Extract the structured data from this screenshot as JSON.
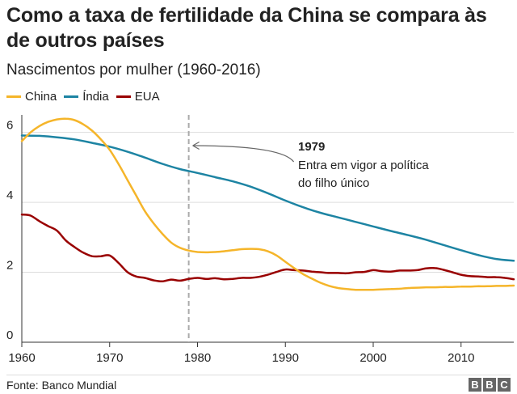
{
  "header": {
    "title": "Como a taxa de fertilidade da China se compara às de outros países",
    "subtitle": "Nascimentos por mulher (1960-2016)"
  },
  "footer": {
    "source": "Fonte: Banco Mundial",
    "logo_letters": [
      "B",
      "B",
      "C"
    ]
  },
  "colors": {
    "china": "#F5B52A",
    "india": "#1D84A3",
    "eua": "#990000",
    "grid": "#DDDDDD",
    "annotation_line": "#AAAAAA"
  },
  "chart_data": {
    "type": "line",
    "title": "Como a taxa de fertilidade da China se compara às de outros países",
    "subtitle": "Nascimentos por mulher (1960-2016)",
    "xlabel": "",
    "ylabel": "",
    "xlim": [
      1960,
      2016
    ],
    "ylim": [
      0,
      6.5
    ],
    "x_ticks": [
      1960,
      1970,
      1980,
      1990,
      2000,
      2010
    ],
    "y_ticks": [
      0,
      2,
      4,
      6
    ],
    "grid": true,
    "legend_position": "top-left",
    "series": [
      {
        "name": "China",
        "color": "#F5B52A",
        "x": [
          1960,
          1961,
          1962,
          1963,
          1964,
          1965,
          1966,
          1967,
          1968,
          1969,
          1970,
          1971,
          1972,
          1973,
          1974,
          1975,
          1976,
          1977,
          1978,
          1979,
          1980,
          1981,
          1982,
          1983,
          1984,
          1985,
          1986,
          1987,
          1988,
          1989,
          1990,
          1991,
          1992,
          1993,
          1994,
          1995,
          1996,
          1997,
          1998,
          1999,
          2000,
          2001,
          2002,
          2003,
          2004,
          2005,
          2006,
          2007,
          2008,
          2009,
          2010,
          2011,
          2012,
          2013,
          2014,
          2015,
          2016
        ],
        "values": [
          5.75,
          6.0,
          6.18,
          6.3,
          6.37,
          6.39,
          6.35,
          6.23,
          6.05,
          5.8,
          5.5,
          5.1,
          4.65,
          4.2,
          3.75,
          3.4,
          3.1,
          2.85,
          2.7,
          2.62,
          2.58,
          2.57,
          2.58,
          2.6,
          2.63,
          2.66,
          2.67,
          2.66,
          2.6,
          2.48,
          2.3,
          2.12,
          1.95,
          1.82,
          1.7,
          1.61,
          1.55,
          1.52,
          1.5,
          1.5,
          1.5,
          1.51,
          1.52,
          1.53,
          1.55,
          1.56,
          1.57,
          1.57,
          1.58,
          1.58,
          1.59,
          1.59,
          1.6,
          1.6,
          1.61,
          1.61,
          1.62
        ]
      },
      {
        "name": "Índia",
        "color": "#1D84A3",
        "x": [
          1960,
          1962,
          1964,
          1966,
          1968,
          1970,
          1972,
          1974,
          1976,
          1978,
          1980,
          1982,
          1984,
          1986,
          1988,
          1990,
          1992,
          1994,
          1996,
          1998,
          2000,
          2002,
          2004,
          2006,
          2008,
          2010,
          2012,
          2014,
          2016
        ],
        "values": [
          5.91,
          5.9,
          5.86,
          5.8,
          5.7,
          5.59,
          5.45,
          5.28,
          5.1,
          4.95,
          4.84,
          4.72,
          4.6,
          4.45,
          4.26,
          4.05,
          3.86,
          3.7,
          3.57,
          3.44,
          3.31,
          3.18,
          3.06,
          2.93,
          2.78,
          2.63,
          2.49,
          2.38,
          2.33
        ]
      },
      {
        "name": "EUA",
        "color": "#990000",
        "x": [
          1960,
          1961,
          1962,
          1963,
          1964,
          1965,
          1966,
          1967,
          1968,
          1969,
          1970,
          1971,
          1972,
          1973,
          1974,
          1975,
          1976,
          1977,
          1978,
          1979,
          1980,
          1981,
          1982,
          1983,
          1984,
          1985,
          1986,
          1987,
          1988,
          1989,
          1990,
          1991,
          1992,
          1993,
          1994,
          1995,
          1996,
          1997,
          1998,
          1999,
          2000,
          2001,
          2002,
          2003,
          2004,
          2005,
          2006,
          2007,
          2008,
          2009,
          2010,
          2011,
          2012,
          2013,
          2014,
          2015,
          2016
        ],
        "values": [
          3.65,
          3.62,
          3.46,
          3.32,
          3.19,
          2.91,
          2.72,
          2.56,
          2.46,
          2.46,
          2.48,
          2.27,
          2.01,
          1.88,
          1.84,
          1.77,
          1.74,
          1.79,
          1.76,
          1.81,
          1.84,
          1.81,
          1.83,
          1.8,
          1.81,
          1.84,
          1.84,
          1.87,
          1.93,
          2.01,
          2.08,
          2.06,
          2.05,
          2.02,
          2.0,
          1.98,
          1.98,
          1.97,
          2.0,
          2.01,
          2.06,
          2.03,
          2.02,
          2.05,
          2.05,
          2.06,
          2.11,
          2.12,
          2.07,
          2.0,
          1.93,
          1.89,
          1.88,
          1.86,
          1.86,
          1.84,
          1.8
        ]
      }
    ],
    "annotations": [
      {
        "x": 1979,
        "label_title": "1979",
        "label_lines": [
          "Entra em vigor a política",
          "do filho único"
        ]
      }
    ]
  }
}
